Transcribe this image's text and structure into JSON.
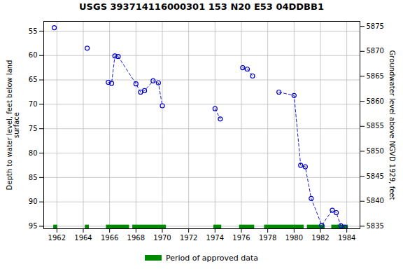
{
  "chart_data": {
    "type": "line",
    "title": "USGS 393714116000301 153  N20 E53 04DDBB1",
    "ylabel": "Depth to water level, feet below land\nsurface",
    "y2label": "Groundwater level above NGVD 1929, feet",
    "x": [
      1961.8,
      null,
      1964.3,
      null,
      1965.9,
      1966.15,
      1966.4,
      1966.65,
      1968.0,
      1968.35,
      1968.65,
      1969.3,
      1969.7,
      1970.0,
      null,
      1974.0,
      1974.4,
      null,
      1976.1,
      1976.45,
      1976.85,
      null,
      1978.85,
      1980.0,
      1980.5,
      1980.85,
      1981.3,
      1982.1,
      1982.9,
      1983.2,
      1983.55,
      1983.85
    ],
    "series": [
      {
        "color": "#0000cc",
        "line_style": "dashed",
        "marker": "circle",
        "values": [
          54.3,
          null,
          58.5,
          null,
          65.5,
          65.7,
          60.1,
          60.2,
          65.8,
          67.5,
          67.2,
          65.2,
          65.6,
          70.3,
          null,
          70.9,
          73.0,
          null,
          62.5,
          62.8,
          64.2,
          null,
          67.5,
          68.2,
          82.5,
          82.8,
          89.3,
          94.8,
          91.7,
          92.2,
          94.9,
          95.2
        ]
      }
    ],
    "approved_periods": {
      "name": "Period of approved data",
      "color": "#008800",
      "ranges": [
        [
          1961.75,
          1962.05
        ],
        [
          1964.15,
          1964.45
        ],
        [
          1965.75,
          1967.5
        ],
        [
          1967.75,
          1970.3
        ],
        [
          1973.9,
          1974.5
        ],
        [
          1975.85,
          1977.0
        ],
        [
          1977.75,
          1980.75
        ],
        [
          1981.0,
          1982.35
        ],
        [
          1982.85,
          1984.1
        ]
      ]
    },
    "xlim": [
      1961,
      1985
    ],
    "xticks": [
      1962,
      1964,
      1966,
      1968,
      1970,
      1972,
      1974,
      1976,
      1978,
      1980,
      1982,
      1984
    ],
    "ylim": [
      95.5,
      53
    ],
    "yticks": [
      55,
      60,
      65,
      70,
      75,
      80,
      85,
      90,
      95
    ],
    "y2lim": [
      5834.5,
      5876
    ],
    "y2ticks": [
      5835,
      5840,
      5845,
      5850,
      5855,
      5860,
      5865,
      5870,
      5875
    ],
    "grid": true,
    "legend": "bottom"
  }
}
